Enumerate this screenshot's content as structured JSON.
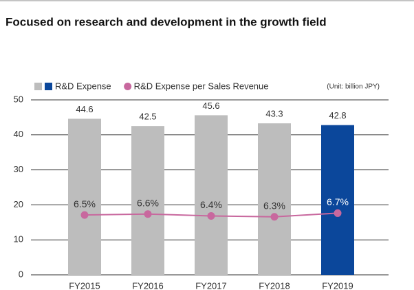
{
  "chart_data": {
    "type": "bar",
    "title": "Focused on research and development in the growth field",
    "unit_note": "(Unit: billion JPY)",
    "categories": [
      "FY2015",
      "FY2016",
      "FY2017",
      "FY2018",
      "FY2019"
    ],
    "series": [
      {
        "name": "R&D Expense",
        "type": "bar",
        "colors": [
          "#bdbdbd",
          "#bdbdbd",
          "#bdbdbd",
          "#bdbdbd",
          "#0b479b"
        ],
        "values": [
          44.6,
          42.5,
          45.6,
          43.3,
          42.8
        ]
      },
      {
        "name": "R&D Expense per Sales Revenue",
        "type": "line",
        "axis": "y2",
        "color": "#c8689e",
        "values": [
          6.5,
          6.6,
          6.4,
          6.3,
          6.7
        ],
        "value_labels": [
          "6.5%",
          "6.6%",
          "6.4%",
          "6.3%",
          "6.7%"
        ]
      }
    ],
    "ylim": [
      0,
      50
    ],
    "yticks": [
      0,
      10,
      20,
      30,
      40,
      50
    ],
    "y2lim": [
      0,
      19
    ],
    "grid": true
  }
}
